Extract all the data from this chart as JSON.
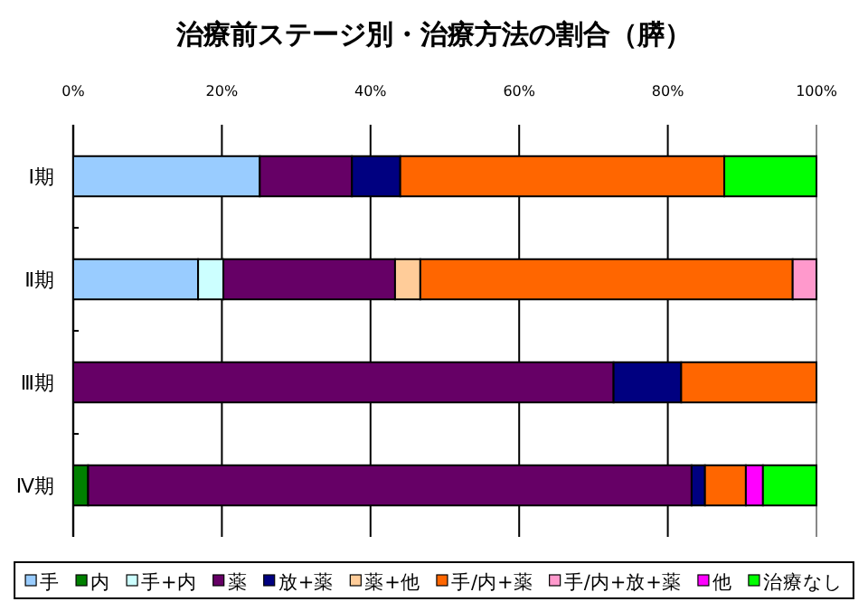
{
  "chart_data": {
    "type": "bar",
    "title": "治療前ステージ別・治療方法の割合（膵）",
    "orientation": "horizontal",
    "stacked": true,
    "categories": [
      "Ⅰ期",
      "Ⅱ期",
      "Ⅲ期",
      "Ⅳ期"
    ],
    "xlim": [
      0,
      100
    ],
    "xticks": [
      {
        "value": 0,
        "label": "0%"
      },
      {
        "value": 20,
        "label": "20%"
      },
      {
        "value": 40,
        "label": "40%"
      },
      {
        "value": 60,
        "label": "60%"
      },
      {
        "value": 80,
        "label": "80%"
      },
      {
        "value": 100,
        "label": "100%"
      }
    ],
    "grid": "x",
    "legend": "bottom",
    "series": [
      {
        "name": "手",
        "color": "#99ccff",
        "values": [
          25.1,
          16.8,
          0,
          0
        ]
      },
      {
        "name": "内",
        "color": "#008000",
        "values": [
          0,
          0,
          0,
          2.0
        ]
      },
      {
        "name": "手+内",
        "color": "#ccffff",
        "values": [
          0,
          3.4,
          0,
          0
        ]
      },
      {
        "name": "薬",
        "color": "#660066",
        "values": [
          12.4,
          23.1,
          72.7,
          81.2
        ]
      },
      {
        "name": "放+薬",
        "color": "#000080",
        "values": [
          6.5,
          0,
          9.1,
          1.8
        ]
      },
      {
        "name": "薬+他",
        "color": "#ffcc99",
        "values": [
          0,
          3.4,
          0,
          0
        ]
      },
      {
        "name": "手/内+薬",
        "color": "#ff6600",
        "values": [
          43.6,
          50.1,
          18.2,
          5.5
        ]
      },
      {
        "name": "手/内+放+薬",
        "color": "#ff99cc",
        "values": [
          0,
          3.2,
          0,
          0
        ]
      },
      {
        "name": "他",
        "color": "#ff00ff",
        "values": [
          0,
          0,
          0,
          2.3
        ]
      },
      {
        "name": "治療なし",
        "color": "#00ff00",
        "values": [
          12.4,
          0,
          0,
          7.2
        ]
      }
    ]
  }
}
